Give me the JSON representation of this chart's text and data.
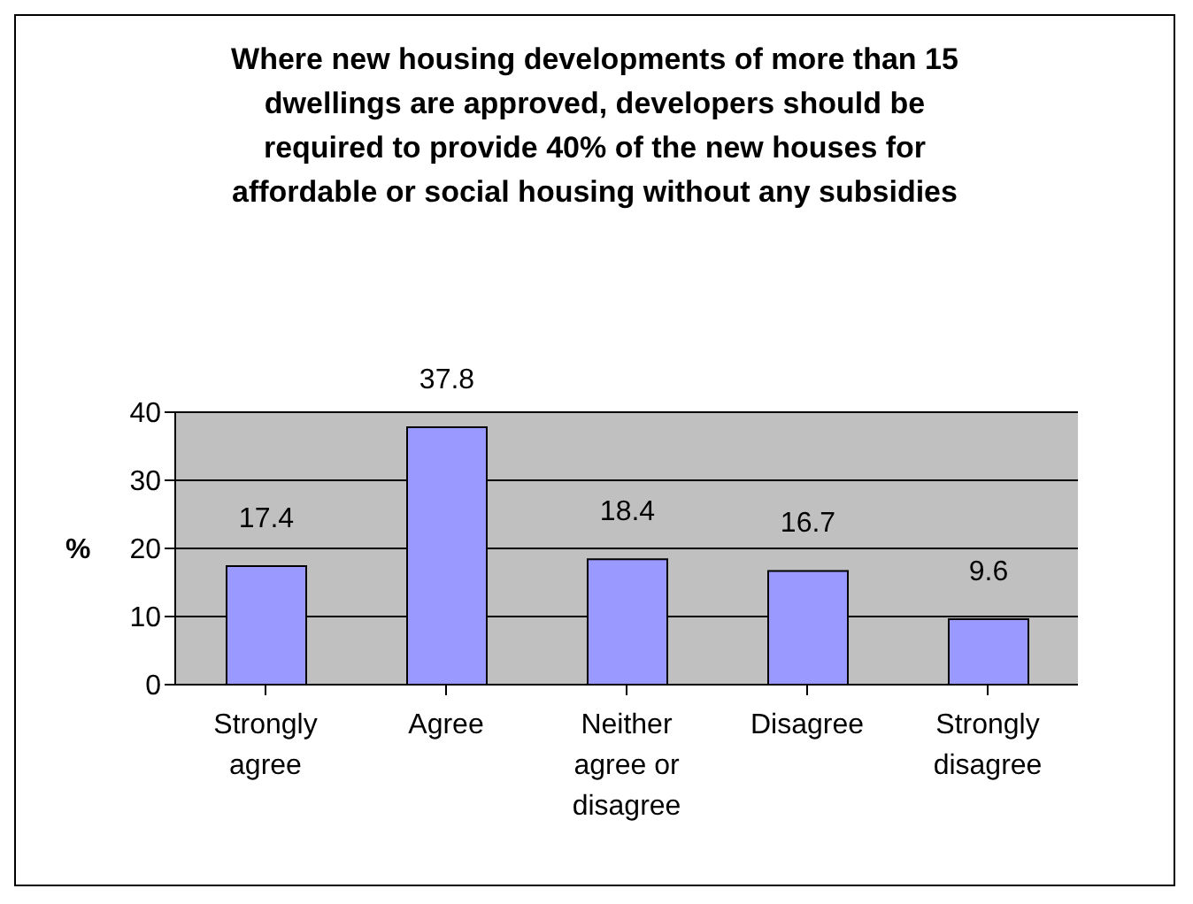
{
  "chart_data": {
    "type": "bar",
    "title": "Where new housing developments of more than 15 dwellings are approved, developers should be required to provide 40% of the new houses for affordable or social housing without any subsidies",
    "ylabel": "%",
    "categories": [
      "Strongly agree",
      "Agree",
      "Neither agree or disagree",
      "Disagree",
      "Strongly disagree"
    ],
    "values": [
      17.4,
      37.8,
      18.4,
      16.7,
      9.6
    ],
    "color": "#9999ff",
    "ylim": [
      0,
      40
    ],
    "yticks": [
      0,
      10,
      20,
      30,
      40
    ],
    "grid": "y",
    "data_labels": true
  }
}
